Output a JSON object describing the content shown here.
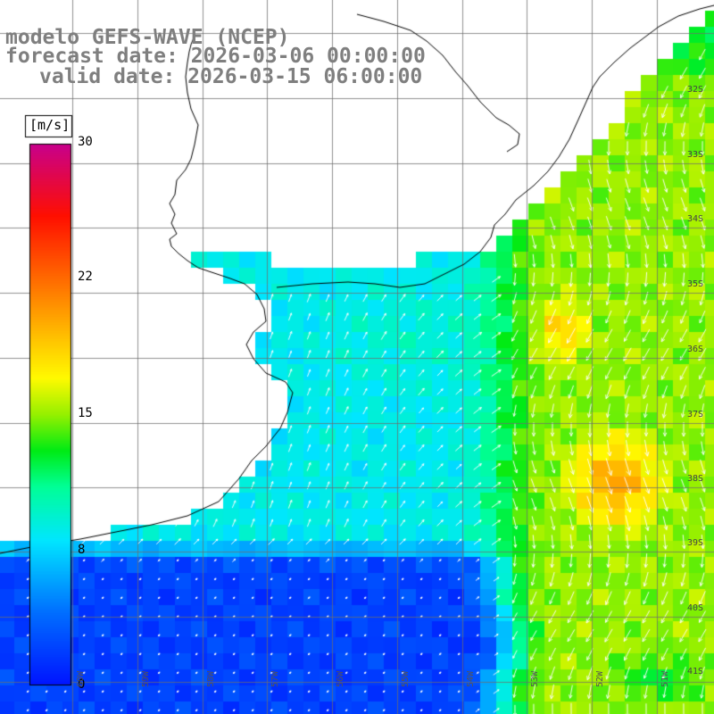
{
  "header": {
    "line1": "modelo GEFS-WAVE (NCEP)",
    "line2": "forecast date: 2026-03-06 00:00:00",
    "line3": "valid date: 2026-03-15 06:00:00"
  },
  "colorbar": {
    "unit": "[m/s]",
    "min": 0,
    "max": 30,
    "ticks": [
      "30",
      "22",
      "15",
      "8",
      "0"
    ]
  },
  "map": {
    "lat_labels": [
      "32S",
      "33S",
      "34S",
      "35S",
      "36S",
      "37S",
      "38S",
      "39S",
      "40S",
      "41S"
    ],
    "lon_labels": [
      "60W",
      "59W",
      "58W",
      "57W",
      "56W",
      "55W",
      "54W",
      "53W",
      "52W",
      "51W"
    ]
  }
}
